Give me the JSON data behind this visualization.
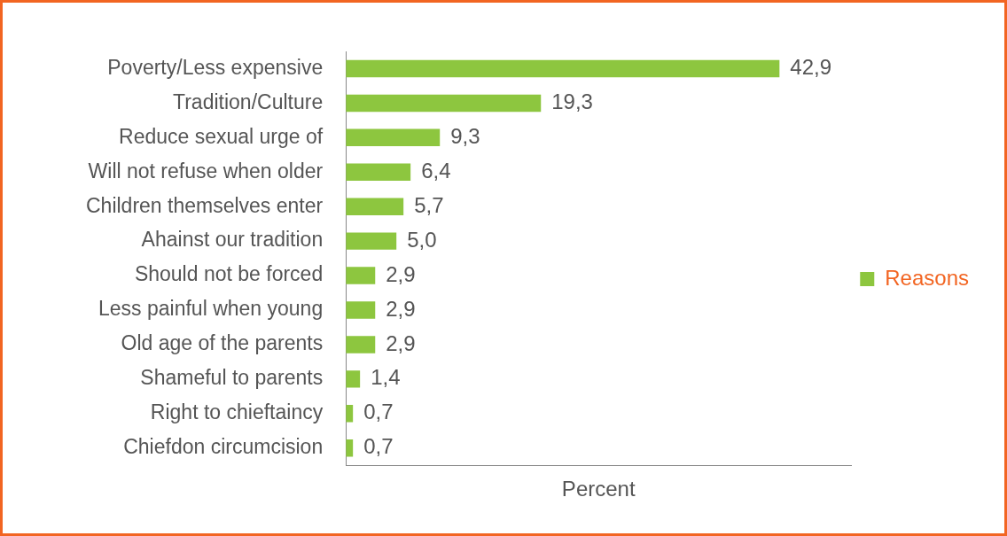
{
  "chart_data": {
    "type": "bar",
    "orientation": "horizontal",
    "xlabel": "Percent",
    "categories": [
      "Poverty/Less expensive",
      "Tradition/Culture",
      "Reduce sexual urge of",
      "Will not refuse when older",
      "Children themselves enter",
      "Ahainst our tradition",
      "Should not be forced",
      "Less painful when young",
      "Old age of the parents",
      "Shameful to parents",
      "Right to chieftaincy",
      "Chiefdon circumcision"
    ],
    "series": [
      {
        "name": "Reasons",
        "color": "#8dc63f",
        "values": [
          42.9,
          19.3,
          9.3,
          6.4,
          5.7,
          5.0,
          2.9,
          2.9,
          2.9,
          1.4,
          0.7,
          0.7
        ],
        "value_labels": [
          "42,9",
          "19,3",
          "9,3",
          "6,4",
          "5,7",
          "5,0",
          "2,9",
          "2,9",
          "2,9",
          "1,4",
          "0,7",
          "0,7"
        ]
      }
    ],
    "legend": "right",
    "grid": false,
    "tick_labels": "y"
  }
}
